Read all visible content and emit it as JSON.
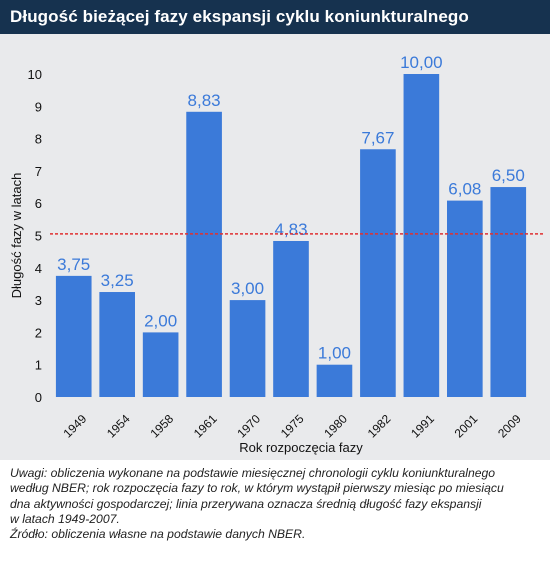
{
  "header": {
    "title": "Długość bieżącej fazy ekspansji cyklu koniunkturalnego"
  },
  "colors": {
    "header_bg": "#16324f",
    "bar": "#3b7ad9",
    "label": "#3b7ad9",
    "mean_line": "#e03030",
    "plot_bg": "#e9eaec"
  },
  "chart_data": {
    "type": "bar",
    "categories": [
      "1949",
      "1954",
      "1958",
      "1961",
      "1970",
      "1975",
      "1980",
      "1982",
      "1991",
      "2001",
      "2009"
    ],
    "values": [
      3.75,
      3.25,
      2.0,
      8.83,
      3.0,
      4.83,
      1.0,
      7.67,
      10.0,
      6.08,
      6.5
    ],
    "data_labels": [
      "3,75",
      "3,25",
      "2,00",
      "8,83",
      "3,00",
      "4,83",
      "1,00",
      "7,67",
      "10,00",
      "6,08",
      "6,50"
    ],
    "title": "Długość bieżącej fazy ekspansji cyklu koniunkturalnego",
    "xlabel": "Rok rozpoczęcia fazy",
    "ylabel": "Długość fazy w latach",
    "ylim": [
      0,
      10
    ],
    "yticks": [
      "0",
      "1",
      "2",
      "3",
      "4",
      "5",
      "6",
      "7",
      "8",
      "9",
      "10"
    ],
    "mean_line": 5.05,
    "grid": false,
    "legend": "none"
  },
  "notes": {
    "line1": "Uwagi: obliczenia wykonane na podstawie miesięcznej chronologii cyklu koniunkturalnego",
    "line2": "według NBER; rok rozpoczęcia fazy to rok, w którym wystąpił pierwszy miesiąc po miesiącu",
    "line3": "dna aktywności gospodarczej; linia przerywana oznacza średnią długość fazy ekspansji",
    "line4": "w latach 1949-2007.",
    "source": "Źródło: obliczenia własne na podstawie danych NBER."
  }
}
